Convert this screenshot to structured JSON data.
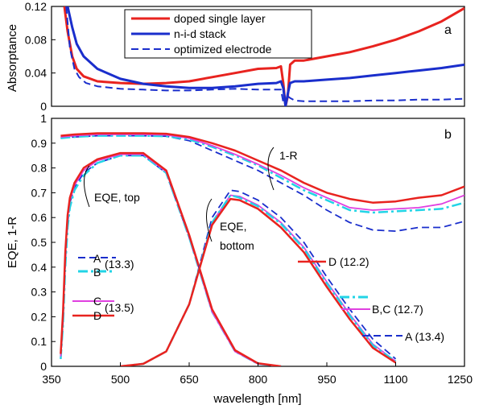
{
  "chart_data": [
    {
      "type": "line",
      "panel_label": "a",
      "ylabel": "Absorptance",
      "xlim": [
        350,
        1250
      ],
      "ylim": [
        0,
        0.12
      ],
      "yticks": [
        0,
        0.04,
        0.08,
        0.12
      ],
      "ytick_labels": [
        "0",
        "0.04",
        "0.08",
        "0.12"
      ],
      "grid": false,
      "legend_position": "top-center",
      "legend": [
        {
          "label": "doped single layer",
          "color": "#e8231f",
          "dash": "solid"
        },
        {
          "label": "n-i-d stack",
          "color": "#1a2ecc",
          "dash": "solid"
        },
        {
          "label": "optimized electrode",
          "color": "#1a2ecc",
          "dash": "dashed"
        }
      ],
      "series": [
        {
          "name": "doped single layer",
          "color": "#e8231f",
          "dash": "solid",
          "width": 3,
          "x": [
            378,
            385,
            395,
            405,
            420,
            450,
            500,
            550,
            600,
            650,
            700,
            750,
            800,
            840,
            850,
            855,
            860,
            865,
            870,
            880,
            900,
            950,
            1000,
            1050,
            1100,
            1150,
            1200,
            1250
          ],
          "y": [
            0.12,
            0.09,
            0.06,
            0.045,
            0.036,
            0.03,
            0.028,
            0.027,
            0.028,
            0.03,
            0.035,
            0.04,
            0.045,
            0.046,
            0.048,
            0.028,
            0.0,
            0.012,
            0.05,
            0.055,
            0.055,
            0.06,
            0.065,
            0.072,
            0.08,
            0.09,
            0.102,
            0.118
          ]
        },
        {
          "name": "n-i-d stack",
          "color": "#1a2ecc",
          "dash": "solid",
          "width": 3,
          "x": [
            385,
            395,
            405,
            420,
            450,
            500,
            550,
            600,
            650,
            700,
            750,
            800,
            840,
            850,
            855,
            860,
            865,
            870,
            880,
            900,
            950,
            1000,
            1050,
            1100,
            1150,
            1200,
            1250
          ],
          "y": [
            0.12,
            0.095,
            0.075,
            0.06,
            0.045,
            0.033,
            0.027,
            0.024,
            0.022,
            0.022,
            0.024,
            0.027,
            0.028,
            0.03,
            0.022,
            0.0,
            0.015,
            0.028,
            0.03,
            0.03,
            0.032,
            0.034,
            0.037,
            0.04,
            0.043,
            0.046,
            0.05
          ]
        },
        {
          "name": "optimized electrode",
          "color": "#1a2ecc",
          "dash": "dashed",
          "width": 2,
          "x": [
            382,
            390,
            400,
            410,
            425,
            450,
            500,
            550,
            600,
            650,
            700,
            750,
            800,
            840,
            850,
            855,
            860,
            865,
            870,
            880,
            900,
            950,
            1000,
            1050,
            1100,
            1150,
            1200,
            1250
          ],
          "y": [
            0.12,
            0.07,
            0.045,
            0.035,
            0.028,
            0.024,
            0.021,
            0.02,
            0.019,
            0.019,
            0.02,
            0.021,
            0.02,
            0.02,
            0.02,
            0.005,
            0.0,
            0.012,
            0.01,
            0.007,
            0.006,
            0.006,
            0.006,
            0.007,
            0.007,
            0.008,
            0.008,
            0.009
          ]
        }
      ]
    },
    {
      "type": "line",
      "panel_label": "b",
      "xlabel": "wavelength [nm]",
      "ylabel": "EQE, 1-R",
      "xlim": [
        350,
        1250
      ],
      "ylim": [
        0,
        1
      ],
      "xticks": [
        350,
        500,
        650,
        800,
        950,
        1100,
        1250
      ],
      "xtick_labels": [
        "350",
        "500",
        "650",
        "800",
        "950",
        "1100",
        "1250"
      ],
      "yticks": [
        0,
        0.1,
        0.2,
        0.3,
        0.4,
        0.5,
        0.6,
        0.7,
        0.8,
        0.9,
        1
      ],
      "ytick_labels": [
        "0",
        "0.1",
        "0.2",
        "0.3",
        "0.4",
        "0.5",
        "0.6",
        "0.7",
        "0.8",
        "0.9",
        "1"
      ],
      "grid": false,
      "annotations": [
        {
          "text": "1-R",
          "x": 855,
          "y": 0.805
        },
        {
          "text": "EQE, top",
          "x": 425,
          "y": 0.655
        },
        {
          "text": "EQE,",
          "x": 708,
          "y": 0.555
        },
        {
          "text": "bottom",
          "x": 708,
          "y": 0.47
        },
        {
          "text": "A",
          "x": 398,
          "y": 0.44
        },
        {
          "text": "B",
          "x": 398,
          "y": 0.385
        },
        {
          "text": "(13.3)",
          "x": 410,
          "y": 0.41
        },
        {
          "text": "C",
          "x": 398,
          "y": 0.255
        },
        {
          "text": "(13.5)",
          "x": 410,
          "y": 0.23
        },
        {
          "text": "D",
          "x": 398,
          "y": 0.2
        },
        {
          "text": "D (12.2)",
          "x": 888,
          "y": 0.405
        },
        {
          "text": "B,C (12.7)",
          "x": 1015,
          "y": 0.215
        },
        {
          "text": "A (13.4)",
          "x": 1015,
          "y": 0.115
        }
      ],
      "series": [
        {
          "name": "1-R optimized electrode",
          "color": "#1a2ecc",
          "dash": "dashed",
          "width": 1.8,
          "x": [
            370,
            400,
            450,
            500,
            550,
            600,
            650,
            700,
            750,
            800,
            850,
            900,
            950,
            1000,
            1050,
            1100,
            1150,
            1200,
            1250
          ],
          "y": [
            0.92,
            0.925,
            0.93,
            0.93,
            0.93,
            0.928,
            0.91,
            0.87,
            0.83,
            0.79,
            0.74,
            0.69,
            0.63,
            0.58,
            0.55,
            0.545,
            0.56,
            0.56,
            0.585
          ]
        },
        {
          "name": "1-R cyan",
          "color": "#22d4e6",
          "dash": "dashdot",
          "width": 2.5,
          "x": [
            370,
            400,
            450,
            500,
            550,
            600,
            650,
            700,
            750,
            800,
            850,
            900,
            950,
            1000,
            1050,
            1100,
            1150,
            1200,
            1250
          ],
          "y": [
            0.92,
            0.925,
            0.93,
            0.93,
            0.93,
            0.928,
            0.915,
            0.885,
            0.85,
            0.81,
            0.76,
            0.71,
            0.67,
            0.63,
            0.62,
            0.625,
            0.63,
            0.635,
            0.66
          ]
        },
        {
          "name": "1-R magenta",
          "color": "#e040e0",
          "dash": "solid",
          "width": 1.8,
          "x": [
            370,
            400,
            450,
            500,
            550,
            600,
            650,
            700,
            750,
            800,
            850,
            900,
            950,
            1000,
            1050,
            1100,
            1150,
            1200,
            1250
          ],
          "y": [
            0.925,
            0.93,
            0.935,
            0.935,
            0.935,
            0.933,
            0.92,
            0.89,
            0.855,
            0.815,
            0.77,
            0.72,
            0.68,
            0.64,
            0.63,
            0.635,
            0.64,
            0.655,
            0.69
          ]
        },
        {
          "name": "1-R doped single layer",
          "color": "#e8231f",
          "dash": "solid",
          "width": 2.5,
          "x": [
            370,
            400,
            450,
            500,
            550,
            600,
            650,
            700,
            750,
            800,
            850,
            900,
            950,
            1000,
            1050,
            1100,
            1150,
            1200,
            1250
          ],
          "y": [
            0.93,
            0.935,
            0.94,
            0.94,
            0.94,
            0.938,
            0.925,
            0.9,
            0.87,
            0.83,
            0.79,
            0.74,
            0.7,
            0.675,
            0.66,
            0.665,
            0.68,
            0.69,
            0.725
          ]
        },
        {
          "name": "EQE top A",
          "color": "#1a2ecc",
          "dash": "dashed",
          "width": 1.8,
          "x": [
            370,
            375,
            380,
            385,
            390,
            400,
            420,
            450,
            500,
            550,
            600,
            650,
            700,
            750,
            800,
            850
          ],
          "y": [
            0.03,
            0.18,
            0.42,
            0.58,
            0.66,
            0.72,
            0.78,
            0.82,
            0.85,
            0.85,
            0.78,
            0.52,
            0.22,
            0.06,
            0.01,
            0.0
          ]
        },
        {
          "name": "EQE top B",
          "color": "#22d4e6",
          "dash": "dashdot",
          "width": 2.5,
          "x": [
            370,
            375,
            380,
            385,
            390,
            400,
            420,
            450,
            500,
            550,
            600,
            650,
            700,
            750,
            800,
            850
          ],
          "y": [
            0.03,
            0.17,
            0.4,
            0.56,
            0.64,
            0.71,
            0.77,
            0.82,
            0.85,
            0.85,
            0.78,
            0.52,
            0.22,
            0.06,
            0.01,
            0.0
          ]
        },
        {
          "name": "EQE top C",
          "color": "#e040e0",
          "dash": "solid",
          "width": 1.8,
          "x": [
            370,
            375,
            380,
            385,
            390,
            400,
            420,
            450,
            500,
            550,
            600,
            650,
            700,
            750,
            800,
            850
          ],
          "y": [
            0.04,
            0.2,
            0.44,
            0.6,
            0.67,
            0.73,
            0.79,
            0.83,
            0.855,
            0.855,
            0.785,
            0.525,
            0.22,
            0.06,
            0.01,
            0.0
          ]
        },
        {
          "name": "EQE top D",
          "color": "#e8231f",
          "dash": "solid",
          "width": 2.5,
          "x": [
            370,
            375,
            380,
            385,
            390,
            400,
            420,
            450,
            500,
            550,
            600,
            650,
            700,
            750,
            800,
            850
          ],
          "y": [
            0.05,
            0.22,
            0.46,
            0.61,
            0.68,
            0.74,
            0.8,
            0.835,
            0.86,
            0.86,
            0.79,
            0.53,
            0.23,
            0.065,
            0.012,
            0.0
          ]
        },
        {
          "name": "EQE bottom A",
          "color": "#1a2ecc",
          "dash": "dashed",
          "width": 1.8,
          "x": [
            500,
            550,
            600,
            650,
            700,
            740,
            760,
            800,
            850,
            900,
            950,
            1000,
            1050,
            1100
          ],
          "y": [
            0.0,
            0.01,
            0.06,
            0.25,
            0.6,
            0.71,
            0.705,
            0.67,
            0.6,
            0.5,
            0.36,
            0.23,
            0.11,
            0.03
          ]
        },
        {
          "name": "EQE bottom B,C magenta",
          "color": "#e040e0",
          "dash": "solid",
          "width": 1.8,
          "x": [
            500,
            550,
            600,
            650,
            700,
            740,
            760,
            800,
            850,
            900,
            950,
            1000,
            1050,
            1100
          ],
          "y": [
            0.0,
            0.01,
            0.06,
            0.25,
            0.58,
            0.69,
            0.685,
            0.65,
            0.58,
            0.48,
            0.34,
            0.21,
            0.09,
            0.02
          ]
        },
        {
          "name": "EQE bottom B,C cyan",
          "color": "#22d4e6",
          "dash": "dashdot",
          "width": 2.5,
          "x": [
            500,
            550,
            600,
            650,
            700,
            740,
            760,
            800,
            850,
            900,
            950,
            1000,
            1050,
            1100
          ],
          "y": [
            0.0,
            0.01,
            0.06,
            0.25,
            0.58,
            0.69,
            0.68,
            0.645,
            0.575,
            0.475,
            0.335,
            0.205,
            0.085,
            0.02
          ]
        },
        {
          "name": "EQE bottom D",
          "color": "#e8231f",
          "dash": "solid",
          "width": 2.5,
          "x": [
            500,
            550,
            600,
            650,
            700,
            740,
            760,
            800,
            850,
            900,
            950,
            1000,
            1050,
            1100
          ],
          "y": [
            0.0,
            0.01,
            0.06,
            0.25,
            0.57,
            0.675,
            0.67,
            0.635,
            0.56,
            0.46,
            0.32,
            0.19,
            0.075,
            0.015
          ]
        }
      ]
    }
  ]
}
